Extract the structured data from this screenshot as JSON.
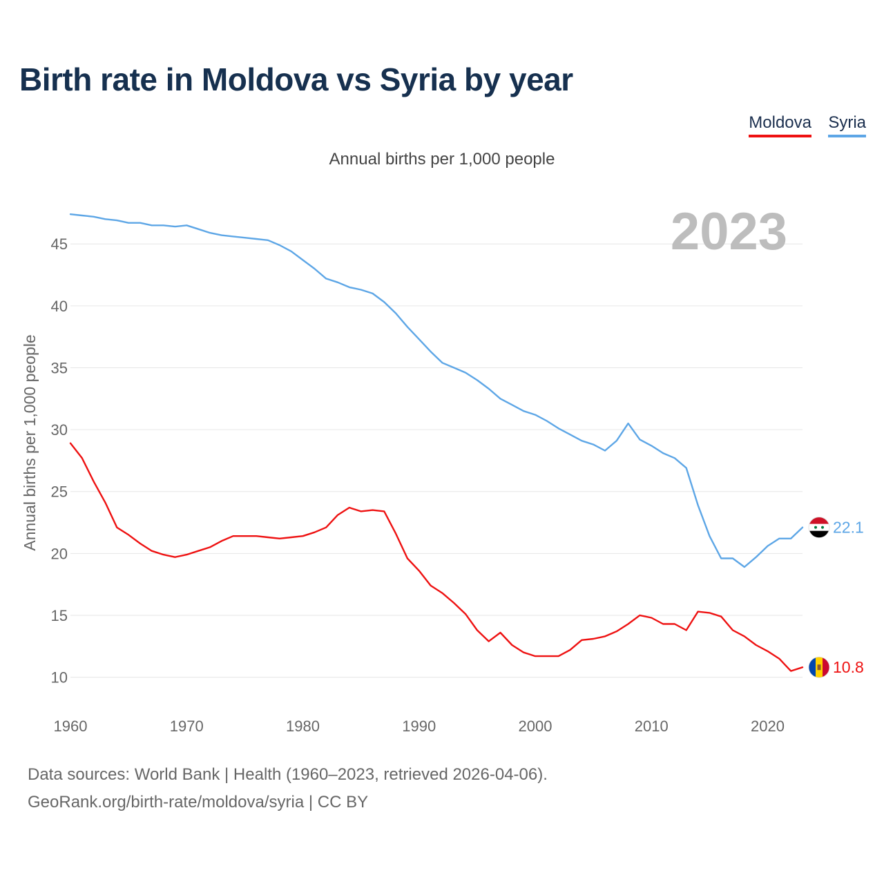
{
  "header": {
    "title": "Birth rate in Moldova vs Syria by year",
    "subtitle": "Annual births per 1,000 people"
  },
  "legend": {
    "moldova": "Moldova",
    "syria": "Syria"
  },
  "footer": {
    "source": "Data sources: World Bank | Health (1960–2023, retrieved 2026-04-06).",
    "credit": "GeoRank.org/birth-rate/moldova/syria | CC BY"
  },
  "colors": {
    "moldova": "#ee1111",
    "syria": "#5da6e6",
    "grid": "#e6e6e6",
    "axis_text": "#666666",
    "year_label": "#bdbdbd"
  },
  "chart_data": {
    "type": "line",
    "title": "Birth rate in Moldova vs Syria by year",
    "subtitle": "Annual births per 1,000 people",
    "xlabel": "",
    "ylabel": "Annual births per 1,000 people",
    "year_label": "2023",
    "x": [
      1960,
      1961,
      1962,
      1963,
      1964,
      1965,
      1966,
      1967,
      1968,
      1969,
      1970,
      1971,
      1972,
      1973,
      1974,
      1975,
      1976,
      1977,
      1978,
      1979,
      1980,
      1981,
      1982,
      1983,
      1984,
      1985,
      1986,
      1987,
      1988,
      1989,
      1990,
      1991,
      1992,
      1993,
      1994,
      1995,
      1996,
      1997,
      1998,
      1999,
      2000,
      2001,
      2002,
      2003,
      2004,
      2005,
      2006,
      2007,
      2008,
      2009,
      2010,
      2011,
      2012,
      2013,
      2014,
      2015,
      2016,
      2017,
      2018,
      2019,
      2020,
      2021,
      2022,
      2023
    ],
    "xticks": [
      1960,
      1970,
      1980,
      1990,
      2000,
      2010,
      2020
    ],
    "xlim": [
      1960,
      2023
    ],
    "yticks": [
      10,
      15,
      20,
      25,
      30,
      35,
      40,
      45
    ],
    "ylim": [
      7.8,
      47.8
    ],
    "grid": true,
    "legend_position": "top-right",
    "series": [
      {
        "name": "Moldova",
        "color": "#ee1111",
        "end_label": "10.8",
        "values": [
          28.9,
          27.7,
          25.8,
          24.1,
          22.1,
          21.5,
          20.8,
          20.2,
          19.9,
          19.7,
          19.9,
          20.2,
          20.5,
          21.0,
          21.4,
          21.4,
          21.4,
          21.3,
          21.2,
          21.3,
          21.4,
          21.7,
          22.1,
          23.1,
          23.7,
          23.4,
          23.5,
          23.4,
          21.6,
          19.6,
          18.6,
          17.4,
          16.8,
          16.0,
          15.1,
          13.8,
          12.9,
          13.6,
          12.6,
          12.0,
          11.7,
          11.7,
          11.7,
          12.2,
          13.0,
          13.1,
          13.3,
          13.7,
          14.3,
          15.0,
          14.8,
          14.3,
          14.3,
          13.8,
          15.3,
          15.2,
          14.9,
          13.8,
          13.3,
          12.6,
          12.1,
          11.5,
          10.5,
          10.8
        ]
      },
      {
        "name": "Syria",
        "color": "#5da6e6",
        "end_label": "22.1",
        "values": [
          47.4,
          47.3,
          47.2,
          47.0,
          46.9,
          46.7,
          46.7,
          46.5,
          46.5,
          46.4,
          46.5,
          46.2,
          45.9,
          45.7,
          45.6,
          45.5,
          45.4,
          45.3,
          44.9,
          44.4,
          43.7,
          43.0,
          42.2,
          41.9,
          41.5,
          41.3,
          41.0,
          40.3,
          39.4,
          38.3,
          37.3,
          36.3,
          35.4,
          35.0,
          34.6,
          34.0,
          33.3,
          32.5,
          32.0,
          31.5,
          31.2,
          30.7,
          30.1,
          29.6,
          29.1,
          28.8,
          28.3,
          29.1,
          30.5,
          29.2,
          28.7,
          28.1,
          27.7,
          26.9,
          23.9,
          21.4,
          19.6,
          19.6,
          18.9,
          19.7,
          20.6,
          21.2,
          21.2,
          22.1
        ]
      }
    ]
  }
}
